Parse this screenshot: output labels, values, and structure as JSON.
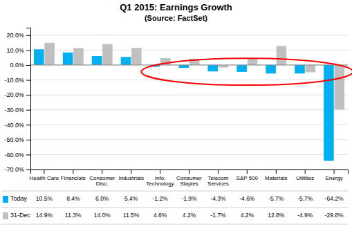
{
  "chart_data": {
    "type": "bar",
    "title": "Q1 2015: Earnings Growth",
    "subtitle": "(Source: FactSet)",
    "categories": [
      "Health Care",
      "Financials",
      "Consumer\nDisc.",
      "Industrials",
      "Info.\nTechnology",
      "Consumer\nStaples",
      "Telecom\nServices",
      "S&P 500",
      "Materials",
      "Utilities",
      "Energy"
    ],
    "series": [
      {
        "name": "Today",
        "color": "#00B0F0",
        "values": [
          10.5,
          8.4,
          6.0,
          5.4,
          -1.2,
          -1.9,
          -4.3,
          -4.6,
          -5.7,
          -5.7,
          -64.2
        ],
        "value_labels": [
          "10.5%",
          "8.4%",
          "6.0%",
          "5.4%",
          "-1.2%",
          "-1.9%",
          "-4.3%",
          "-4.6%",
          "-5.7%",
          "-5.7%",
          "-64.2%"
        ]
      },
      {
        "name": "31-Dec",
        "color": "#C0C0C0",
        "values": [
          14.9,
          11.3,
          14.0,
          11.5,
          4.6,
          4.2,
          -1.7,
          4.2,
          12.8,
          -4.9,
          -29.8
        ],
        "value_labels": [
          "14.9%",
          "11.3%",
          "14.0%",
          "11.5%",
          "4.6%",
          "4.2%",
          "-1.7%",
          "4.2%",
          "12.8%",
          "-4.9%",
          "-29.8%"
        ]
      }
    ],
    "ylim": [
      -70.0,
      25.0
    ],
    "yticks": [
      {
        "value": 20.0,
        "label": "20.0%"
      },
      {
        "value": 10.0,
        "label": "10.0%"
      },
      {
        "value": 0.0,
        "label": "0.0%"
      },
      {
        "value": -10.0,
        "label": "-10.0%"
      },
      {
        "value": -20.0,
        "label": "-20.0%"
      },
      {
        "value": -30.0,
        "label": "-30.0%"
      },
      {
        "value": -40.0,
        "label": "-40.0%"
      },
      {
        "value": -50.0,
        "label": "-50.0%"
      },
      {
        "value": -60.0,
        "label": "-60.0%"
      },
      {
        "value": -70.0,
        "label": "-70.0%"
      }
    ],
    "grid": true,
    "legend": "bottom"
  }
}
